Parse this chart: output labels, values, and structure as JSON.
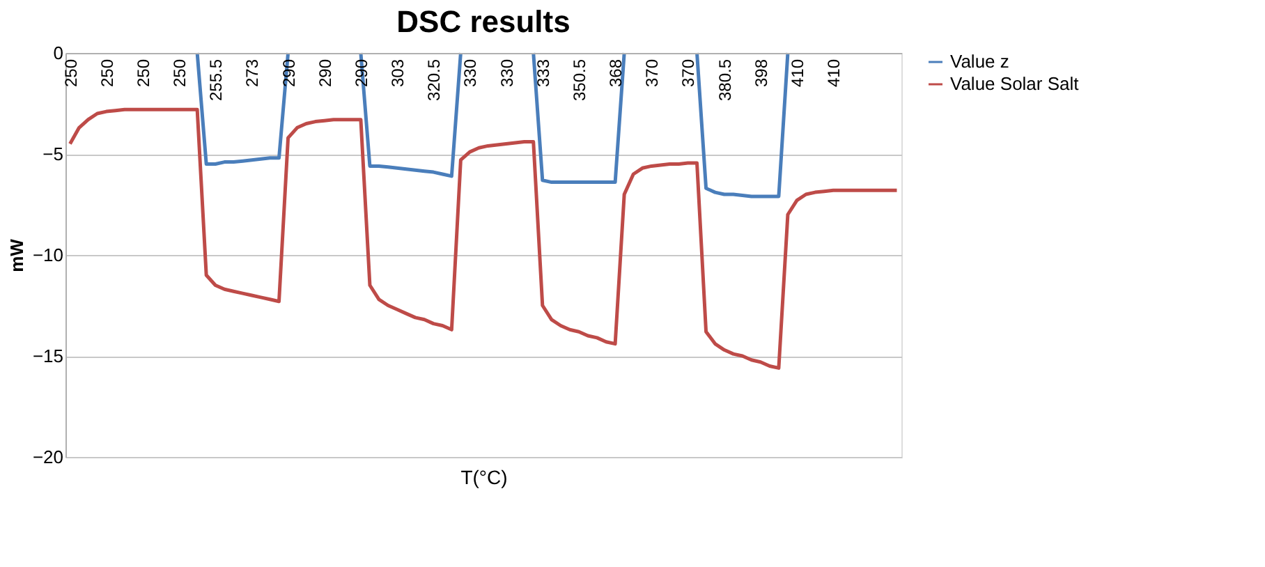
{
  "chart_data": {
    "type": "line",
    "title": "DSC results",
    "xlabel": "T(°C)",
    "ylabel": "mW",
    "categories": [
      "250",
      null,
      null,
      null,
      "250",
      null,
      null,
      null,
      "250",
      null,
      null,
      null,
      "250",
      null,
      null,
      null,
      "255.5",
      null,
      null,
      null,
      "273",
      null,
      null,
      null,
      "290",
      null,
      null,
      null,
      "290",
      null,
      null,
      null,
      "290",
      null,
      null,
      null,
      "303",
      null,
      null,
      null,
      "320.5",
      null,
      null,
      null,
      "330",
      null,
      null,
      null,
      "330",
      null,
      null,
      null,
      "333",
      null,
      null,
      null,
      "350.5",
      null,
      null,
      null,
      "368",
      null,
      null,
      null,
      "370",
      null,
      null,
      null,
      "370",
      null,
      null,
      null,
      "380.5",
      null,
      null,
      null,
      "398",
      null,
      null,
      null,
      "410",
      null,
      null,
      null,
      "410",
      null,
      null,
      null,
      null,
      null,
      null,
      null
    ],
    "series": [
      {
        "name": "Value z",
        "color": "#4a7ebb",
        "values": [
          null,
          null,
          null,
          null,
          null,
          null,
          null,
          null,
          null,
          null,
          null,
          null,
          null,
          null,
          0,
          -5.5,
          -5.5,
          -5.4,
          -5.4,
          -5.35,
          -5.3,
          -5.25,
          -5.2,
          -5.2,
          0,
          null,
          null,
          null,
          null,
          null,
          null,
          null,
          0,
          -5.6,
          -5.6,
          -5.65,
          -5.7,
          -5.75,
          -5.8,
          -5.85,
          -5.9,
          -6.0,
          -6.1,
          0,
          null,
          null,
          null,
          null,
          null,
          null,
          null,
          0,
          -6.3,
          -6.4,
          -6.4,
          -6.4,
          -6.4,
          -6.4,
          -6.4,
          -6.4,
          -6.4,
          0,
          null,
          null,
          null,
          null,
          null,
          null,
          null,
          0,
          -6.7,
          -6.9,
          -7.0,
          -7.0,
          -7.05,
          -7.1,
          -7.1,
          -7.1,
          -7.1,
          0,
          null,
          null,
          null,
          null,
          null,
          null,
          null,
          null,
          null,
          null,
          null,
          null
        ]
      },
      {
        "name": "Value Solar Salt",
        "color": "#be4b48",
        "values": [
          -4.5,
          -3.7,
          -3.3,
          -3.0,
          -2.9,
          -2.85,
          -2.8,
          -2.8,
          -2.8,
          -2.8,
          -2.8,
          -2.8,
          -2.8,
          -2.8,
          -2.8,
          -11.0,
          -11.5,
          -11.7,
          -11.8,
          -11.9,
          -12.0,
          -12.1,
          -12.2,
          -12.3,
          -4.2,
          -3.7,
          -3.5,
          -3.4,
          -3.35,
          -3.3,
          -3.3,
          -3.3,
          -3.3,
          -11.5,
          -12.2,
          -12.5,
          -12.7,
          -12.9,
          -13.1,
          -13.2,
          -13.4,
          -13.5,
          -13.7,
          -5.3,
          -4.9,
          -4.7,
          -4.6,
          -4.55,
          -4.5,
          -4.45,
          -4.4,
          -4.4,
          -12.5,
          -13.2,
          -13.5,
          -13.7,
          -13.8,
          -14.0,
          -14.1,
          -14.3,
          -14.4,
          -7.0,
          -6.0,
          -5.7,
          -5.6,
          -5.55,
          -5.5,
          -5.5,
          -5.45,
          -5.45,
          -13.8,
          -14.4,
          -14.7,
          -14.9,
          -15.0,
          -15.2,
          -15.3,
          -15.5,
          -15.6,
          -8.0,
          -7.3,
          -7.0,
          -6.9,
          -6.85,
          -6.8,
          -6.8,
          -6.8,
          -6.8,
          -6.8,
          -6.8,
          -6.8,
          -6.8
        ]
      }
    ],
    "ylim": [
      -20,
      0
    ],
    "yticks": [
      0,
      -5,
      -10,
      -15,
      -20
    ],
    "grid": "y",
    "legend": "right",
    "marker": "none",
    "line_style": "solid"
  }
}
